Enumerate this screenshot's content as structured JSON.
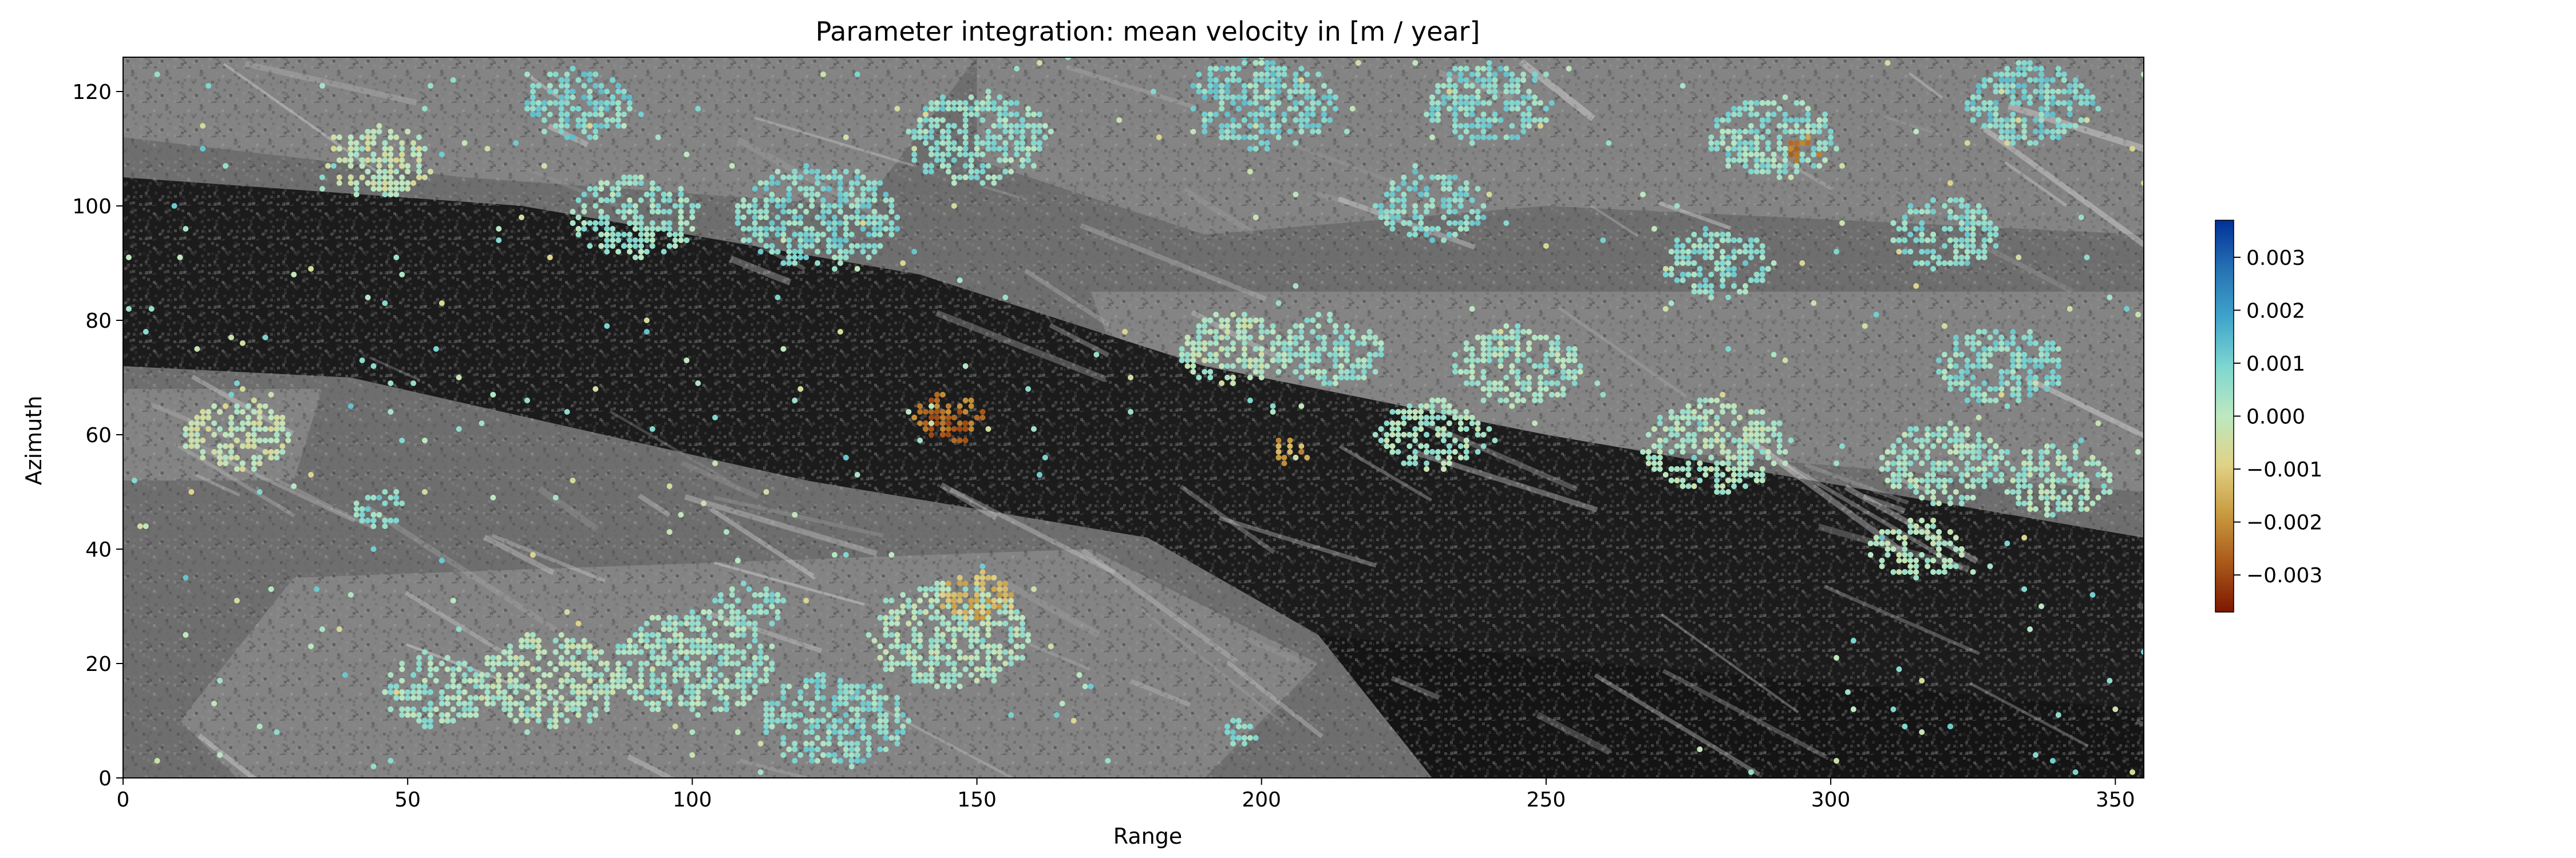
{
  "chart_data": {
    "type": "heatmap",
    "title": "Parameter integration: mean velocity in [m / year]",
    "xlabel": "Range",
    "ylabel": "Azimuth",
    "xlim": [
      0,
      355
    ],
    "ylim": [
      0,
      126
    ],
    "xticks": [
      0,
      50,
      100,
      150,
      200,
      250,
      300,
      350
    ],
    "yticks": [
      0,
      20,
      40,
      60,
      80,
      100,
      120
    ],
    "background": "grayscale SAR amplitude image",
    "colorbar": {
      "cmap": "roma",
      "vmin": -0.0037,
      "vmax": 0.0037,
      "ticks": [
        0.003,
        0.002,
        0.001,
        0.0,
        -0.001,
        -0.002,
        -0.003
      ],
      "tick_labels": [
        "0.003",
        "0.002",
        "0.001",
        "0.000",
        "−0.001",
        "−0.002",
        "−0.003"
      ],
      "colors": [
        "#7e1700",
        "#a9591a",
        "#c99a3f",
        "#e0d286",
        "#bde8c0",
        "#7ed7d1",
        "#40a5cb",
        "#2672b4",
        "#023198"
      ]
    },
    "clusters": [
      {
        "x": 122,
        "y": 98,
        "r": 9,
        "v": 0.0008
      },
      {
        "x": 90,
        "y": 98,
        "r": 7,
        "v": 0.0005
      },
      {
        "x": 45,
        "y": 108,
        "r": 6,
        "v": -0.0002
      },
      {
        "x": 80,
        "y": 118,
        "r": 6,
        "v": 0.0009
      },
      {
        "x": 150,
        "y": 112,
        "r": 8,
        "v": 0.0006
      },
      {
        "x": 200,
        "y": 118,
        "r": 8,
        "v": 0.0009
      },
      {
        "x": 240,
        "y": 118,
        "r": 7,
        "v": 0.0008
      },
      {
        "x": 290,
        "y": 112,
        "r": 7,
        "v": 0.0006
      },
      {
        "x": 295,
        "y": 110,
        "r": 2,
        "v": -0.0022
      },
      {
        "x": 335,
        "y": 118,
        "r": 7,
        "v": 0.0009
      },
      {
        "x": 230,
        "y": 100,
        "r": 6,
        "v": 0.0008
      },
      {
        "x": 280,
        "y": 90,
        "r": 6,
        "v": 0.0007
      },
      {
        "x": 320,
        "y": 95,
        "r": 6,
        "v": 0.0007
      },
      {
        "x": 195,
        "y": 75,
        "r": 6,
        "v": 0.0001
      },
      {
        "x": 212,
        "y": 75,
        "r": 6,
        "v": 0.0005
      },
      {
        "x": 245,
        "y": 72,
        "r": 7,
        "v": 0.0004
      },
      {
        "x": 330,
        "y": 72,
        "r": 7,
        "v": 0.0007
      },
      {
        "x": 145,
        "y": 63,
        "r": 4,
        "v": -0.0025
      },
      {
        "x": 205,
        "y": 57,
        "r": 2,
        "v": -0.0017
      },
      {
        "x": 230,
        "y": 60,
        "r": 6,
        "v": 0.0003
      },
      {
        "x": 280,
        "y": 58,
        "r": 8,
        "v": 0.0002
      },
      {
        "x": 320,
        "y": 55,
        "r": 7,
        "v": 0.0004
      },
      {
        "x": 340,
        "y": 52,
        "r": 6,
        "v": 0.0003
      },
      {
        "x": 20,
        "y": 60,
        "r": 6,
        "v": -0.0002
      },
      {
        "x": 45,
        "y": 47,
        "r": 3,
        "v": 0.0008
      },
      {
        "x": 315,
        "y": 40,
        "r": 5,
        "v": 0.0001
      },
      {
        "x": 110,
        "y": 30,
        "r": 4,
        "v": 0.0006
      },
      {
        "x": 145,
        "y": 25,
        "r": 9,
        "v": 0.0002
      },
      {
        "x": 150,
        "y": 32,
        "r": 4,
        "v": -0.0013
      },
      {
        "x": 100,
        "y": 20,
        "r": 9,
        "v": 0.0004
      },
      {
        "x": 75,
        "y": 17,
        "r": 8,
        "v": 0.0001
      },
      {
        "x": 55,
        "y": 15,
        "r": 6,
        "v": 0.0004
      },
      {
        "x": 125,
        "y": 10,
        "r": 8,
        "v": 0.0007
      },
      {
        "x": 196,
        "y": 8,
        "r": 2,
        "v": 0.0008
      }
    ]
  }
}
